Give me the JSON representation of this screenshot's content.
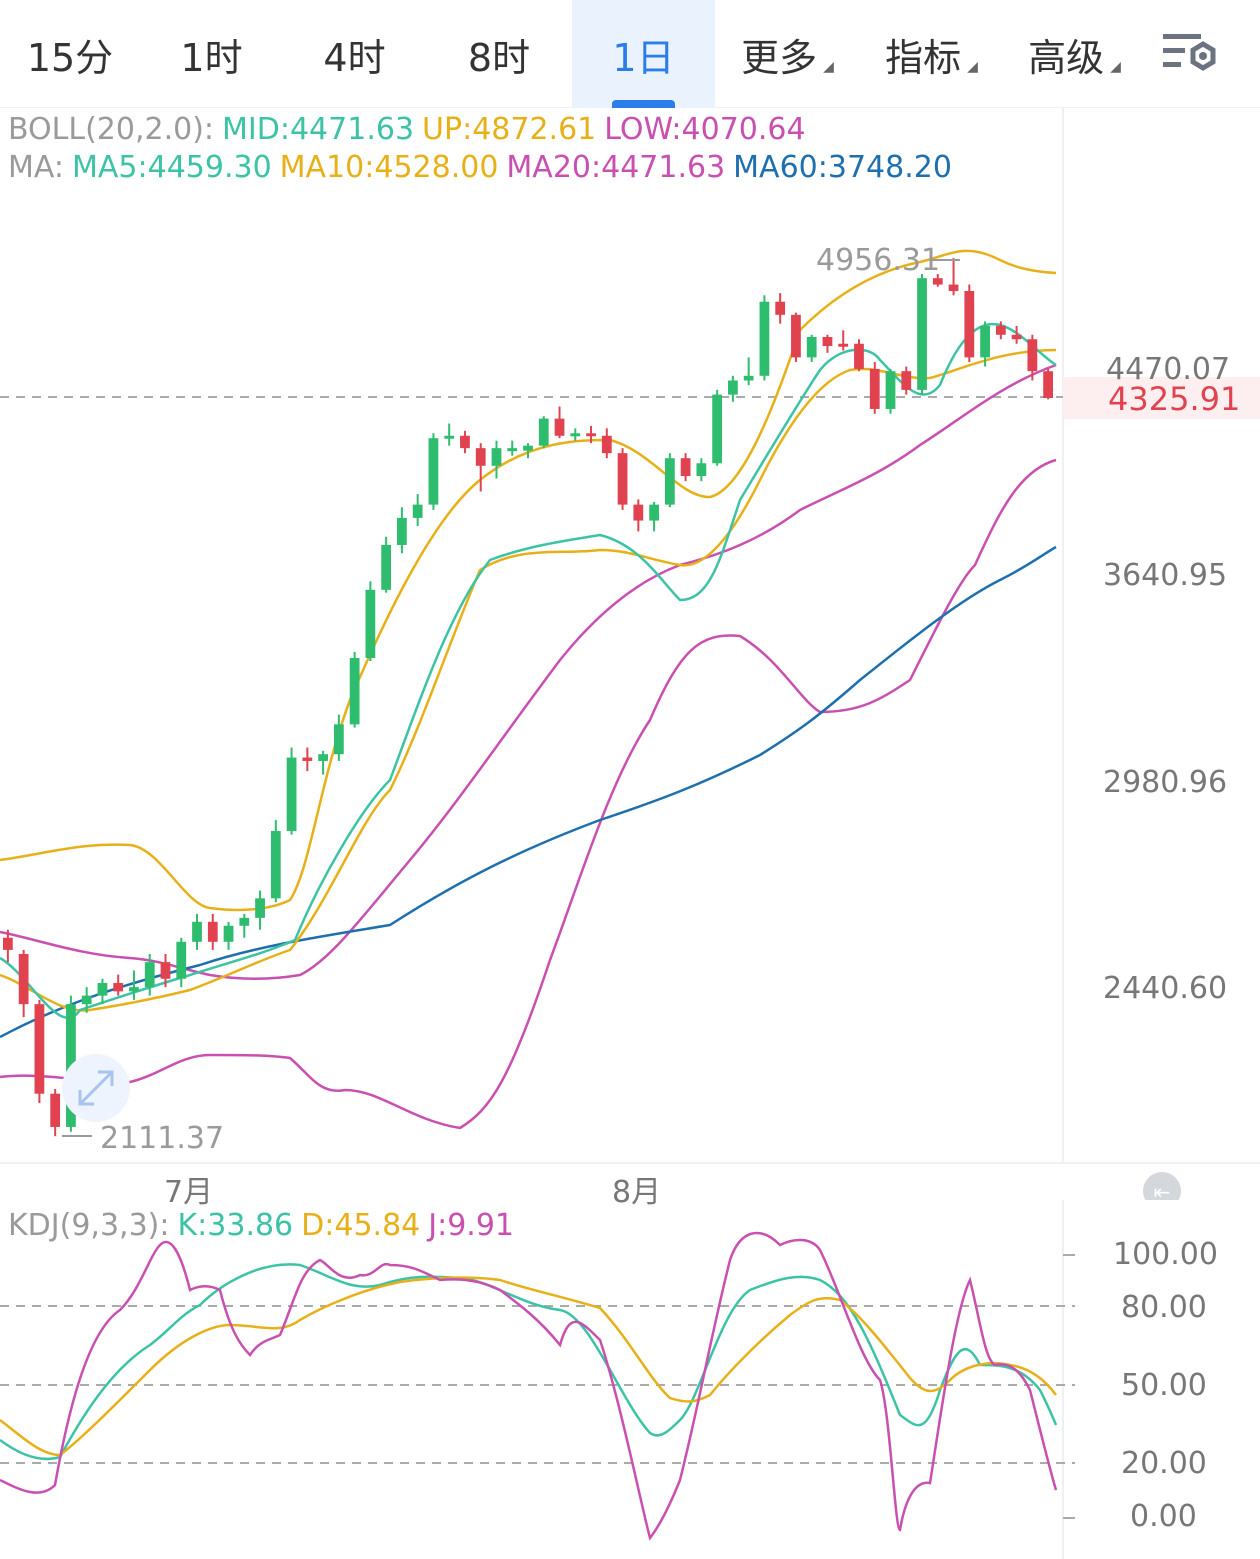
{
  "tabs": [
    {
      "label": "15分",
      "dropdown": false
    },
    {
      "label": "1时",
      "dropdown": false
    },
    {
      "label": "4时",
      "dropdown": false
    },
    {
      "label": "8时",
      "dropdown": false
    },
    {
      "label": "1日",
      "dropdown": false,
      "active": true
    },
    {
      "label": "更多",
      "dropdown": true
    },
    {
      "label": "指标",
      "dropdown": true
    },
    {
      "label": "高级",
      "dropdown": true
    }
  ],
  "boll": {
    "name": "BOLL(20,2.0):",
    "mid": "MID:4471.63",
    "up": "UP:4872.61",
    "low": "LOW:4070.64"
  },
  "ma": {
    "name": "MA:",
    "ma5": "MA5:4459.30",
    "ma10": "MA10:4528.00",
    "ma20": "MA20:4471.63",
    "ma60": "MA60:3748.20"
  },
  "kdj": {
    "name": "KDJ(9,3,3):",
    "k": "K:33.86",
    "d": "D:45.84",
    "j": "J:9.91"
  },
  "price_axis": [
    "4470.07",
    "3640.95",
    "2980.96",
    "2440.60"
  ],
  "current_price": "4325.91",
  "high_label": "4956.31",
  "low_label": "2111.37",
  "months": [
    "7月",
    "8月"
  ],
  "kdj_axis": [
    "100.00",
    "80.00",
    "50.00",
    "20.00",
    "0.00"
  ],
  "colors": {
    "up": "#2ebd6e",
    "down": "#e0424f",
    "mid": "#c94fb0",
    "upper": "#e8b018",
    "ma5": "#3cc3a6",
    "ma60": "#1e6fae",
    "accent": "#2b7de9"
  },
  "chart_data": {
    "type": "candlestick",
    "title": "",
    "y_scale": "log",
    "ylim": [
      2111.37,
      4956.31
    ],
    "x_ticks": [
      "7月",
      "8月"
    ],
    "candles": [
      {
        "o": 2560,
        "h": 2580,
        "l": 2500,
        "c": 2530,
        "dir": "down"
      },
      {
        "o": 2520,
        "h": 2530,
        "l": 2370,
        "c": 2400,
        "dir": "down"
      },
      {
        "o": 2400,
        "h": 2410,
        "l": 2180,
        "c": 2200,
        "dir": "down"
      },
      {
        "o": 2200,
        "h": 2210,
        "l": 2111,
        "c": 2130,
        "dir": "down"
      },
      {
        "o": 2130,
        "h": 2420,
        "l": 2120,
        "c": 2400,
        "dir": "up"
      },
      {
        "o": 2400,
        "h": 2440,
        "l": 2380,
        "c": 2420,
        "dir": "up"
      },
      {
        "o": 2420,
        "h": 2460,
        "l": 2400,
        "c": 2450,
        "dir": "up"
      },
      {
        "o": 2450,
        "h": 2470,
        "l": 2420,
        "c": 2430,
        "dir": "down"
      },
      {
        "o": 2430,
        "h": 2480,
        "l": 2410,
        "c": 2440,
        "dir": "up"
      },
      {
        "o": 2440,
        "h": 2520,
        "l": 2420,
        "c": 2500,
        "dir": "up"
      },
      {
        "o": 2500,
        "h": 2520,
        "l": 2440,
        "c": 2460,
        "dir": "down"
      },
      {
        "o": 2460,
        "h": 2560,
        "l": 2440,
        "c": 2550,
        "dir": "up"
      },
      {
        "o": 2550,
        "h": 2620,
        "l": 2530,
        "c": 2600,
        "dir": "up"
      },
      {
        "o": 2600,
        "h": 2620,
        "l": 2530,
        "c": 2550,
        "dir": "down"
      },
      {
        "o": 2550,
        "h": 2600,
        "l": 2530,
        "c": 2590,
        "dir": "up"
      },
      {
        "o": 2590,
        "h": 2620,
        "l": 2560,
        "c": 2610,
        "dir": "up"
      },
      {
        "o": 2610,
        "h": 2680,
        "l": 2580,
        "c": 2660,
        "dir": "up"
      },
      {
        "o": 2660,
        "h": 2870,
        "l": 2650,
        "c": 2840,
        "dir": "up"
      },
      {
        "o": 2840,
        "h": 3080,
        "l": 2830,
        "c": 3050,
        "dir": "up"
      },
      {
        "o": 3050,
        "h": 3080,
        "l": 3010,
        "c": 3040,
        "dir": "down"
      },
      {
        "o": 3040,
        "h": 3070,
        "l": 3000,
        "c": 3060,
        "dir": "up"
      },
      {
        "o": 3060,
        "h": 3180,
        "l": 3040,
        "c": 3150,
        "dir": "up"
      },
      {
        "o": 3150,
        "h": 3380,
        "l": 3140,
        "c": 3360,
        "dir": "up"
      },
      {
        "o": 3360,
        "h": 3620,
        "l": 3350,
        "c": 3590,
        "dir": "up"
      },
      {
        "o": 3590,
        "h": 3780,
        "l": 3580,
        "c": 3750,
        "dir": "up"
      },
      {
        "o": 3750,
        "h": 3890,
        "l": 3720,
        "c": 3850,
        "dir": "up"
      },
      {
        "o": 3850,
        "h": 3940,
        "l": 3820,
        "c": 3900,
        "dir": "up"
      },
      {
        "o": 3900,
        "h": 4180,
        "l": 3880,
        "c": 4160,
        "dir": "up"
      },
      {
        "o": 4160,
        "h": 4220,
        "l": 4130,
        "c": 4170,
        "dir": "up"
      },
      {
        "o": 4170,
        "h": 4190,
        "l": 4100,
        "c": 4120,
        "dir": "down"
      },
      {
        "o": 4120,
        "h": 4140,
        "l": 3950,
        "c": 4050,
        "dir": "down"
      },
      {
        "o": 4050,
        "h": 4150,
        "l": 4000,
        "c": 4120,
        "dir": "up"
      },
      {
        "o": 4120,
        "h": 4150,
        "l": 4090,
        "c": 4110,
        "dir": "up"
      },
      {
        "o": 4110,
        "h": 4140,
        "l": 4080,
        "c": 4130,
        "dir": "up"
      },
      {
        "o": 4130,
        "h": 4250,
        "l": 4120,
        "c": 4240,
        "dir": "up"
      },
      {
        "o": 4240,
        "h": 4290,
        "l": 4160,
        "c": 4170,
        "dir": "down"
      },
      {
        "o": 4170,
        "h": 4200,
        "l": 4150,
        "c": 4180,
        "dir": "up"
      },
      {
        "o": 4180,
        "h": 4210,
        "l": 4140,
        "c": 4170,
        "dir": "down"
      },
      {
        "o": 4170,
        "h": 4200,
        "l": 4080,
        "c": 4100,
        "dir": "down"
      },
      {
        "o": 4100,
        "h": 4120,
        "l": 3880,
        "c": 3900,
        "dir": "down"
      },
      {
        "o": 3900,
        "h": 3920,
        "l": 3800,
        "c": 3840,
        "dir": "down"
      },
      {
        "o": 3840,
        "h": 3910,
        "l": 3800,
        "c": 3900,
        "dir": "up"
      },
      {
        "o": 3900,
        "h": 4100,
        "l": 3890,
        "c": 4080,
        "dir": "up"
      },
      {
        "o": 4080,
        "h": 4100,
        "l": 3990,
        "c": 4010,
        "dir": "down"
      },
      {
        "o": 4010,
        "h": 4080,
        "l": 3990,
        "c": 4060,
        "dir": "up"
      },
      {
        "o": 4060,
        "h": 4360,
        "l": 4050,
        "c": 4340,
        "dir": "up"
      },
      {
        "o": 4340,
        "h": 4420,
        "l": 4310,
        "c": 4400,
        "dir": "up"
      },
      {
        "o": 4400,
        "h": 4500,
        "l": 4380,
        "c": 4420,
        "dir": "up"
      },
      {
        "o": 4420,
        "h": 4780,
        "l": 4400,
        "c": 4750,
        "dir": "up"
      },
      {
        "o": 4750,
        "h": 4790,
        "l": 4650,
        "c": 4690,
        "dir": "down"
      },
      {
        "o": 4690,
        "h": 4700,
        "l": 4480,
        "c": 4500,
        "dir": "down"
      },
      {
        "o": 4500,
        "h": 4600,
        "l": 4480,
        "c": 4590,
        "dir": "up"
      },
      {
        "o": 4590,
        "h": 4600,
        "l": 4520,
        "c": 4550,
        "dir": "down"
      },
      {
        "o": 4550,
        "h": 4620,
        "l": 4530,
        "c": 4560,
        "dir": "down"
      },
      {
        "o": 4560,
        "h": 4580,
        "l": 4440,
        "c": 4450,
        "dir": "down"
      },
      {
        "o": 4450,
        "h": 4480,
        "l": 4260,
        "c": 4280,
        "dir": "down"
      },
      {
        "o": 4280,
        "h": 4450,
        "l": 4260,
        "c": 4440,
        "dir": "up"
      },
      {
        "o": 4440,
        "h": 4460,
        "l": 4340,
        "c": 4360,
        "dir": "down"
      },
      {
        "o": 4360,
        "h": 4880,
        "l": 4340,
        "c": 4860,
        "dir": "up"
      },
      {
        "o": 4860,
        "h": 4880,
        "l": 4820,
        "c": 4830,
        "dir": "down"
      },
      {
        "o": 4830,
        "h": 4956,
        "l": 4780,
        "c": 4800,
        "dir": "down"
      },
      {
        "o": 4800,
        "h": 4830,
        "l": 4480,
        "c": 4500,
        "dir": "down"
      },
      {
        "o": 4500,
        "h": 4660,
        "l": 4460,
        "c": 4640,
        "dir": "up"
      },
      {
        "o": 4640,
        "h": 4660,
        "l": 4580,
        "c": 4600,
        "dir": "down"
      },
      {
        "o": 4600,
        "h": 4640,
        "l": 4560,
        "c": 4580,
        "dir": "down"
      },
      {
        "o": 4580,
        "h": 4600,
        "l": 4400,
        "c": 4440,
        "dir": "down"
      },
      {
        "o": 4440,
        "h": 4450,
        "l": 4320,
        "c": 4325.91,
        "dir": "down"
      }
    ],
    "series": [
      {
        "name": "MA60",
        "values": [
          2300,
          2310,
          2320,
          2330,
          2340,
          2350,
          2360,
          2370,
          2380,
          2390,
          2400,
          2410,
          2420,
          2430,
          2440,
          2450,
          2460,
          2470,
          2480,
          2490,
          2500,
          2510,
          2530,
          2550,
          2570,
          2590,
          2610,
          2630,
          2650,
          2670,
          2690,
          2710,
          2730,
          2750,
          2770,
          2790,
          2810,
          2830,
          2850,
          2880,
          2910,
          2940,
          2970,
          3000,
          3020,
          3040,
          3060,
          3080,
          3100,
          3130,
          3160,
          3200,
          3240,
          3280,
          3320,
          3360,
          3400,
          3440,
          3480,
          3520,
          3560,
          3600,
          3640,
          3680,
          3710,
          3730,
          3748.2
        ]
      }
    ]
  }
}
